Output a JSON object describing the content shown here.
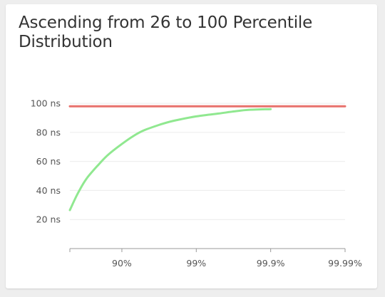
{
  "title": "Ascending from 26 to 100 Percentile Distribution",
  "chart_data": {
    "type": "line",
    "title": "Ascending from 26 to 100 Percentile Distribution",
    "xlabel": "",
    "ylabel": "",
    "x_scale": "percentile (log of 1/(1-p))",
    "x_ticks": [
      "90%",
      "99%",
      "99.9%",
      "99.99%"
    ],
    "y_ticks": [
      {
        "value": 20,
        "label": "20 ns"
      },
      {
        "value": 40,
        "label": "40 ns"
      },
      {
        "value": 60,
        "label": "60 ns"
      },
      {
        "value": 80,
        "label": "80 ns"
      },
      {
        "value": 100,
        "label": "100 ns"
      }
    ],
    "ylim": [
      0,
      102
    ],
    "xlim_percentile": [
      50,
      99.99
    ],
    "grid": true,
    "series": [
      {
        "color": "#90e890",
        "x_percentile": [
          50,
          60,
          70,
          80,
          85,
          90,
          93,
          95,
          97,
          98,
          99,
          99.5,
          99.7,
          99.8,
          99.9
        ],
        "y": [
          26.5,
          37,
          48,
          58.5,
          65,
          72,
          77.5,
          81.5,
          85.5,
          88,
          91,
          93,
          94.5,
          95.5,
          96
        ]
      },
      {
        "color": "#e8716c",
        "x_percentile": [
          50,
          99.99
        ],
        "y": [
          98,
          98
        ]
      }
    ]
  }
}
